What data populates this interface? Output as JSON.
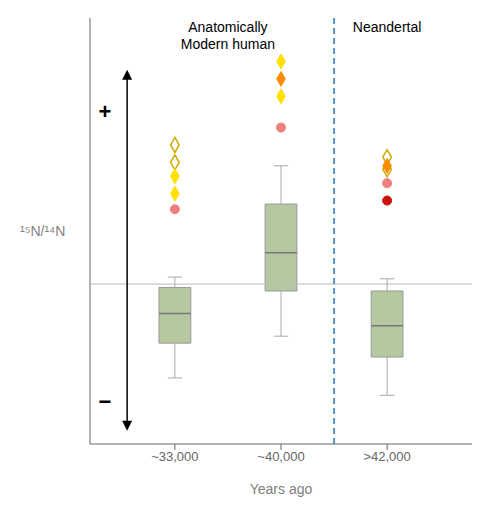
{
  "chart_data": {
    "type": "box",
    "categories": [
      "~33,000",
      "~40,000",
      ">42,000"
    ],
    "xlabel": "Years ago",
    "ylabel": "¹⁵N/¹⁴N",
    "groups": [
      {
        "label": "Anatomically\nModern human",
        "categories": [
          "~33,000",
          "~40,000"
        ]
      },
      {
        "label": "Neandertal",
        "categories": [
          ">42,000"
        ]
      }
    ],
    "annotations": [
      "+",
      "−"
    ],
    "ylim": [
      -1.0,
      1.45
    ],
    "yticks": [],
    "tick_labels": "x",
    "reference_line_y": -0.08,
    "color": "#b5c8a0",
    "boxes": [
      {
        "category": "~33,000",
        "q1": -0.42,
        "median": -0.25,
        "q3": -0.1,
        "whisker_low": -0.62,
        "whisker_high": -0.04
      },
      {
        "category": "~40,000",
        "q1": -0.12,
        "median": 0.1,
        "q3": 0.38,
        "whisker_low": -0.38,
        "whisker_high": 0.6
      },
      {
        "category": ">42,000",
        "q1": -0.5,
        "median": -0.32,
        "q3": -0.12,
        "whisker_low": -0.72,
        "whisker_high": -0.05
      }
    ],
    "series": [
      {
        "color": "#ccaa00",
        "marker": "open_diamond",
        "points": [
          {
            "category": "~33,000",
            "y": 0.72
          },
          {
            "category": "~33,000",
            "y": 0.62
          },
          {
            "category": ">42,000",
            "y": 0.65
          },
          {
            "category": ">42,000",
            "y": 0.58
          }
        ]
      },
      {
        "color": "#FFE000",
        "marker": "diamond",
        "points": [
          {
            "category": "~33,000",
            "y": 0.54
          },
          {
            "category": "~33,000",
            "y": 0.44
          },
          {
            "category": "~40,000",
            "y": 1.2
          },
          {
            "category": "~40,000",
            "y": 1.0
          }
        ]
      },
      {
        "color": "#FF8C00",
        "marker": "diamond",
        "points": [
          {
            "category": "~40,000",
            "y": 1.1
          },
          {
            "category": ">42,000",
            "y": 0.6
          }
        ]
      },
      {
        "color": "#F08080",
        "marker": "circle",
        "points": [
          {
            "category": "~33,000",
            "y": 0.35
          },
          {
            "category": "~40,000",
            "y": 0.82
          },
          {
            "category": ">42,000",
            "y": 0.5
          }
        ]
      },
      {
        "color": "#CC1111",
        "marker": "circle",
        "points": [
          {
            "category": ">42,000",
            "y": 0.4
          }
        ]
      }
    ]
  }
}
